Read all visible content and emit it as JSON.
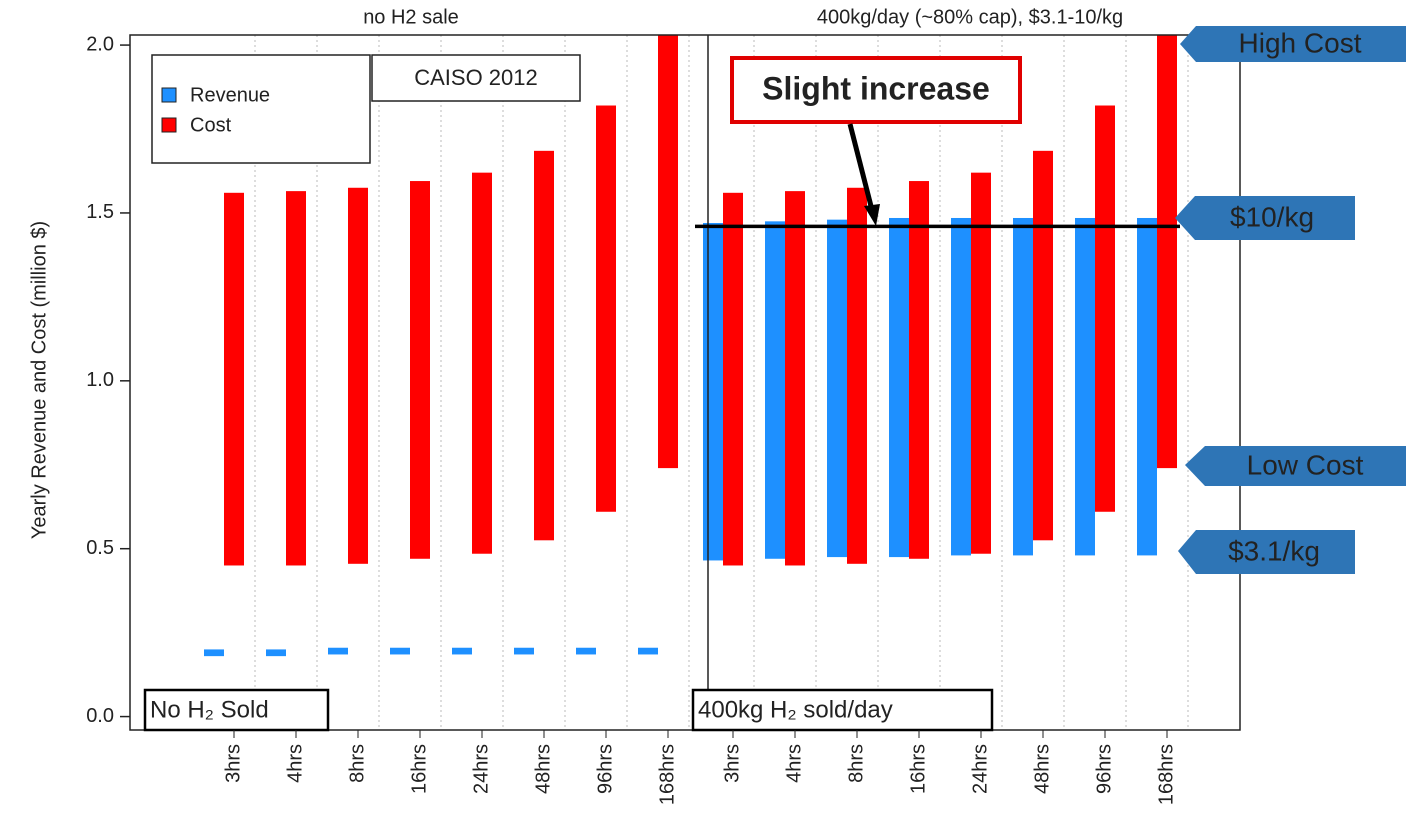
{
  "chart_data": {
    "type": "bar",
    "ylabel": "Yearly Revenue and Cost (million $)",
    "ylim": [
      -0.04,
      2.03
    ],
    "yticks": [
      {
        "value": 0,
        "label": "0.0"
      },
      0.5,
      {
        "value": 1,
        "label": "1.0"
      },
      1.5,
      {
        "value": 2,
        "label": "2.0"
      }
    ],
    "categories": [
      "3hrs",
      "4hrs",
      "8hrs",
      "16hrs",
      "24hrs",
      "48hrs",
      "96hrs",
      "168hrs",
      "3hrs",
      "4hrs",
      "8hrs",
      "16hrs",
      "24hrs",
      "48hrs",
      "96hrs",
      "168hrs"
    ],
    "panels": [
      {
        "title": "no H2 sale",
        "label": "No H₂ Sold"
      },
      {
        "title": "400kg/day (~80% cap), $3.1-10/kg",
        "label": "400kg H₂ sold/day"
      }
    ],
    "series": [
      {
        "name": "Revenue",
        "color": "#1e90ff",
        "low": [
          0.18,
          0.18,
          0.185,
          0.185,
          0.185,
          0.185,
          0.185,
          0.185,
          0.465,
          0.47,
          0.475,
          0.475,
          0.48,
          0.48,
          0.48,
          0.48
        ],
        "high": [
          0.2,
          0.2,
          0.205,
          0.205,
          0.205,
          0.205,
          0.205,
          0.205,
          1.47,
          1.475,
          1.48,
          1.485,
          1.485,
          1.485,
          1.485,
          1.485
        ]
      },
      {
        "name": "Cost",
        "color": "#ff0000",
        "low": [
          0.45,
          0.45,
          0.455,
          0.47,
          0.485,
          0.525,
          0.61,
          0.74,
          0.45,
          0.45,
          0.455,
          0.47,
          0.485,
          0.525,
          0.61,
          0.74
        ],
        "high": [
          1.56,
          1.565,
          1.575,
          1.595,
          1.62,
          1.685,
          1.82,
          2.2,
          1.56,
          1.565,
          1.575,
          1.595,
          1.62,
          1.685,
          1.82,
          2.2
        ]
      }
    ],
    "legend_note": "CAISO 2012",
    "hline": 1.46,
    "callout": "Slight increase",
    "tags": [
      "High Cost",
      "$10/kg",
      "Low Cost",
      "$3.1/kg"
    ],
    "grid": true
  }
}
